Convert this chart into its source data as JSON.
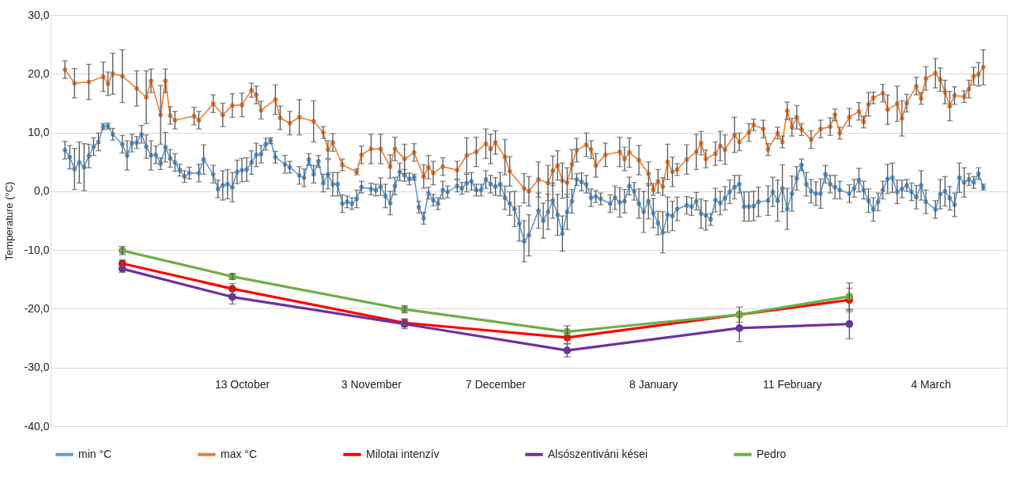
{
  "chart_data": {
    "type": "line",
    "ylabel": "Temperature (°C)",
    "ylim": [
      -40,
      30
    ],
    "yticks": [
      {
        "value": -40,
        "label": "-40,0"
      },
      {
        "value": -30,
        "label": "-30,0"
      },
      {
        "value": -20,
        "label": "-20,0"
      },
      {
        "value": -10,
        "label": "-10,0"
      },
      {
        "value": 0,
        "label": "0,0"
      },
      {
        "value": 10,
        "label": "10,0"
      },
      {
        "value": 20,
        "label": "20,0"
      },
      {
        "value": 30,
        "label": "30,0"
      }
    ],
    "categories": [
      null,
      null,
      null,
      null,
      null,
      null,
      null,
      null,
      null,
      null,
      null,
      null,
      null,
      null,
      null,
      null,
      null,
      null,
      null,
      null,
      null,
      null,
      null,
      null,
      null,
      null,
      null,
      null,
      null,
      null,
      null,
      null,
      null,
      null,
      null,
      null,
      null,
      null,
      null,
      null,
      "13 October",
      null,
      null,
      null,
      null,
      null,
      null,
      null,
      null,
      null,
      null,
      null,
      null,
      null,
      null,
      null,
      null,
      null,
      null,
      null,
      null,
      null,
      null,
      null,
      null,
      null,
      null,
      "3 November",
      null,
      null,
      null,
      null,
      null,
      null,
      null,
      null,
      null,
      null,
      null,
      null,
      null,
      null,
      null,
      null,
      null,
      null,
      null,
      null,
      null,
      null,
      null,
      null,
      null,
      "7 December",
      null,
      null,
      null,
      null,
      null,
      null,
      null,
      null,
      null,
      null,
      null,
      null,
      null,
      null,
      null,
      null,
      null,
      null,
      null,
      null,
      null,
      null,
      null,
      null,
      null,
      null,
      null,
      null,
      null,
      null,
      null,
      null,
      "8 January",
      null,
      null,
      null,
      null,
      null,
      null,
      null,
      null,
      null,
      null,
      null,
      null,
      null,
      null,
      null,
      null,
      null,
      null,
      null,
      null,
      null,
      null,
      null,
      null,
      null,
      null,
      null,
      null,
      "11 February",
      null,
      null,
      null,
      null,
      null,
      null,
      null,
      null,
      null,
      null,
      null,
      null,
      null,
      null,
      null,
      null,
      null,
      null,
      null,
      null,
      null,
      null,
      null,
      null,
      null,
      null,
      null,
      null,
      "4 March",
      null,
      null,
      null,
      null,
      null,
      null,
      null,
      null,
      null,
      null,
      null,
      null,
      null,
      null,
      null,
      null
    ],
    "grid": "y",
    "legend": "bottom",
    "marker": "circle",
    "line_style": "solid",
    "series": [
      {
        "name": "min °C",
        "color": "#5b9bd5",
        "values": [
          null,
          null,
          null,
          7,
          5.8,
          3.8,
          4.9,
          4.1,
          6,
          7.6,
          8.4,
          11,
          11.1,
          9.7,
          null,
          8,
          6.1,
          8.2,
          8.3,
          9.7,
          7.6,
          6.1,
          6.2,
          4.7,
          7.5,
          5.6,
          4.9,
          3.6,
          2.5,
          3.1,
          null,
          3.1,
          5.4,
          null,
          2.9,
          0.4,
          1,
          1.2,
          0.7,
          3.3,
          3.6,
          3.7,
          4.9,
          6.2,
          6.3,
          8,
          8.6,
          5.8,
          null,
          4.6,
          4.1,
          null,
          2.7,
          2.3,
          5.4,
          2.9,
          5.1,
          1.4,
          2.9,
          1.2,
          1.2,
          -2.1,
          -1.8,
          -2.1,
          -1.3,
          0.7,
          null,
          0.4,
          0.2,
          0.8,
          -0.8,
          -2,
          0.9,
          3.3,
          2.7,
          2.1,
          2.4,
          -2.7,
          -4.6,
          -0.3,
          -1.5,
          -2.1,
          0.2,
          -0.1,
          null,
          0.9,
          0.5,
          1.4,
          1.7,
          0.2,
          0.2,
          2,
          1.2,
          0.8,
          1.2,
          -1.1,
          -2.1,
          -3,
          -5.5,
          -8.5,
          -7.5,
          null,
          -3.3,
          -5,
          -3.5,
          -1.6,
          -4,
          -7.2,
          -3.5,
          -1.7,
          2,
          1.6,
          1.2,
          -1.1,
          -0.9,
          -1.3,
          null,
          -2.1,
          -1.1,
          -1.9,
          -1.7,
          0.9,
          0,
          -2.1,
          -3.5,
          -1.7,
          -3.7,
          -5.4,
          -7,
          -4,
          -4.2,
          -3,
          null,
          -2.4,
          -2.6,
          -1.7,
          -3.8,
          -4.1,
          -4.8,
          -1.5,
          -2,
          -1.2,
          -0.1,
          0.7,
          1.2,
          -2.6,
          -2.6,
          -2.5,
          -1.8,
          null,
          -1.6,
          -0.1,
          -1.6,
          0.5,
          -3,
          -0.4,
          2.2,
          4.5,
          1.2,
          0,
          -0.4,
          -0.4,
          2.9,
          1.2,
          0.7,
          0.2,
          null,
          -0.4,
          0.5,
          1.9,
          0.2,
          -1.6,
          -3.1,
          -1.8,
          0.2,
          2.1,
          2.3,
          -0.1,
          0.4,
          1,
          -0.1,
          -1,
          1,
          -1.8,
          null,
          -3.1,
          -0.5,
          0,
          -1.2,
          -2.3,
          2.3,
          1.5,
          2,
          1.5,
          3,
          0.7,
          null,
          null,
          null,
          null,
          null
        ],
        "errors": [
          null,
          null,
          null,
          1.5,
          2,
          3.5,
          3.5,
          4,
          2,
          1.5,
          1.5,
          0.5,
          0.5,
          1,
          null,
          1.5,
          2.5,
          1.5,
          1,
          1.5,
          2,
          2.5,
          1.5,
          1,
          2.5,
          1.5,
          1.5,
          1,
          1,
          1,
          null,
          1.5,
          2.5,
          null,
          1.5,
          1.5,
          2.5,
          2.5,
          2.5,
          2,
          2,
          2,
          2,
          2,
          1.5,
          1,
          0.5,
          1,
          null,
          1.5,
          1,
          null,
          1.5,
          1.5,
          1,
          1.5,
          1,
          1.5,
          2.5,
          2,
          2,
          1.5,
          1,
          1,
          1.5,
          1,
          null,
          1,
          1,
          1.5,
          2,
          2,
          1.5,
          1.5,
          1,
          1,
          0.5,
          1,
          1,
          1,
          1,
          1,
          1.5,
          1,
          null,
          1,
          1,
          1.5,
          1.5,
          1,
          1,
          1.5,
          1.5,
          1.5,
          2,
          2,
          2,
          3,
          3,
          3.5,
          3.5,
          null,
          3,
          3,
          3,
          3,
          3.5,
          3,
          3,
          2,
          1,
          1.5,
          1.5,
          1.5,
          1,
          1,
          null,
          1.5,
          2,
          2.5,
          2,
          1.5,
          1.5,
          2.5,
          3.5,
          3,
          2.5,
          2,
          3.5,
          3,
          2.5,
          2,
          null,
          1.5,
          1.5,
          1.5,
          2.5,
          2.5,
          1,
          2,
          2,
          2,
          2,
          2,
          1.5,
          2.5,
          2.5,
          2.5,
          2.5,
          null,
          2.5,
          2.5,
          3.5,
          4,
          3.5,
          3,
          2,
          1,
          2,
          2,
          2,
          2.5,
          1.5,
          1.5,
          2,
          1.5,
          null,
          1.5,
          1.5,
          2,
          1.5,
          2,
          2,
          1.5,
          1.5,
          2.5,
          2.5,
          2,
          1.5,
          1,
          1.5,
          2,
          2.5,
          2,
          null,
          1.5,
          2.5,
          2.5,
          2,
          2,
          2.5,
          2.5,
          1,
          1,
          1,
          0.5,
          null,
          null,
          null,
          null,
          null
        ]
      },
      {
        "name": "max °C",
        "color": "#ed7d31",
        "values": [
          null,
          null,
          null,
          20.7,
          null,
          18.4,
          null,
          null,
          18.6,
          null,
          null,
          19.5,
          18.3,
          20,
          null,
          19.6,
          null,
          null,
          17.5,
          null,
          16,
          18.8,
          null,
          13,
          18.8,
          12.9,
          12.1,
          null,
          null,
          null,
          12.8,
          12.1,
          null,
          null,
          14.9,
          null,
          13,
          null,
          14.6,
          null,
          14.7,
          null,
          17.2,
          16.4,
          13.8,
          null,
          null,
          15.6,
          12.5,
          null,
          11.6,
          null,
          12.6,
          null,
          null,
          11.9,
          null,
          10,
          7.1,
          8.3,
          null,
          4.5,
          null,
          null,
          3.3,
          6.2,
          null,
          7.2,
          null,
          7.2,
          null,
          4.2,
          7.2,
          null,
          5.5,
          null,
          6.6,
          null,
          2.5,
          4.1,
          3.1,
          null,
          4.2,
          null,
          null,
          3.6,
          null,
          6.1,
          null,
          6.7,
          null,
          8.1,
          7.2,
          8.3,
          null,
          5.8,
          3.4,
          null,
          null,
          0.5,
          0,
          null,
          2,
          null,
          1.4,
          3.5,
          4.4,
          1.8,
          1.5,
          4.6,
          7,
          null,
          7.9,
          7.1,
          4.4,
          null,
          6.2,
          null,
          null,
          6.7,
          5.5,
          6.6,
          null,
          5.3,
          null,
          3,
          0.3,
          1.7,
          0.8,
          5,
          3.3,
          3.7,
          null,
          5.4,
          null,
          6.7,
          8.2,
          5.5,
          null,
          6.4,
          7.7,
          7.1,
          null,
          9.6,
          8.4,
          null,
          10,
          11.3,
          null,
          10.6,
          7.1,
          null,
          9.9,
          8.4,
          13.7,
          10.9,
          12.6,
          10.5,
          null,
          8.8,
          null,
          10.6,
          null,
          11,
          13,
          9.9,
          null,
          12.6,
          null,
          13.6,
          11.8,
          14.8,
          15.9,
          null,
          16.7,
          13.9,
          null,
          14.9,
          12.4,
          15,
          null,
          17.9,
          15.8,
          19.2,
          null,
          20.1,
          19,
          16.9,
          14.5,
          16.3,
          null,
          16.1,
          17.4,
          19.6,
          19.9,
          21.1,
          null,
          null,
          null,
          null,
          null
        ],
        "errors": [
          null,
          null,
          null,
          1.5,
          null,
          2.5,
          null,
          null,
          3,
          null,
          null,
          2.5,
          2,
          3.5,
          null,
          4.5,
          null,
          null,
          3,
          null,
          4.5,
          2,
          null,
          5,
          2,
          1.5,
          1.5,
          null,
          null,
          null,
          1.5,
          1.5,
          null,
          null,
          1.5,
          null,
          2,
          null,
          2,
          null,
          2,
          null,
          1.2,
          1.5,
          1.5,
          null,
          null,
          2.5,
          2,
          null,
          2,
          null,
          3,
          null,
          null,
          3.5,
          null,
          1,
          1.5,
          1.5,
          null,
          1,
          null,
          null,
          0.5,
          1.5,
          null,
          2.5,
          null,
          2.5,
          null,
          2,
          2,
          null,
          2.5,
          null,
          1.5,
          null,
          2,
          2,
          2,
          null,
          1.5,
          null,
          null,
          1.5,
          null,
          3,
          null,
          2.5,
          null,
          2.5,
          2.5,
          2,
          null,
          3,
          2.5,
          null,
          null,
          2.5,
          2.5,
          null,
          3,
          null,
          3,
          2.5,
          2.5,
          3,
          2.5,
          2.5,
          2,
          null,
          2,
          1.5,
          2,
          null,
          2,
          null,
          null,
          2.5,
          2,
          2.5,
          null,
          2.5,
          null,
          2,
          1,
          2,
          1.5,
          3,
          2.5,
          1,
          null,
          2.5,
          null,
          3,
          2,
          1.5,
          null,
          2,
          2.5,
          2.5,
          null,
          3,
          1.5,
          null,
          1.5,
          1,
          null,
          1.5,
          1,
          null,
          1,
          1,
          1.5,
          1.5,
          2,
          1,
          null,
          1.5,
          null,
          1.5,
          null,
          1.5,
          1,
          1,
          null,
          1.5,
          null,
          1.5,
          1,
          2,
          1,
          null,
          1.5,
          2.5,
          null,
          3,
          3,
          1.5,
          null,
          1.5,
          1,
          2,
          null,
          2.5,
          2,
          2,
          2.5,
          1.5,
          null,
          1,
          1.5,
          1.5,
          2,
          3,
          null,
          null,
          null,
          null,
          null
        ]
      },
      {
        "name": "Milotai intenzív",
        "color": "#ff0000",
        "values": [
          null,
          null,
          null,
          null,
          null,
          null,
          null,
          null,
          null,
          null,
          null,
          null,
          null,
          null,
          null,
          -12.3,
          null,
          null,
          null,
          null,
          null,
          null,
          null,
          null,
          null,
          null,
          null,
          null,
          null,
          null,
          null,
          null,
          null,
          null,
          null,
          null,
          null,
          null,
          -16.6,
          null,
          null,
          null,
          null,
          null,
          null,
          null,
          null,
          null,
          null,
          null,
          null,
          null,
          null,
          null,
          null,
          null,
          null,
          null,
          null,
          null,
          null,
          null,
          null,
          null,
          null,
          null,
          null,
          null,
          null,
          null,
          null,
          null,
          null,
          null,
          -22.4,
          null,
          null,
          null,
          null,
          null,
          null,
          null,
          null,
          null,
          null,
          null,
          null,
          null,
          null,
          null,
          null,
          null,
          null,
          null,
          null,
          null,
          null,
          null,
          null,
          null,
          null,
          null,
          null,
          null,
          null,
          null,
          null,
          null,
          -24.9,
          null,
          null,
          null,
          null,
          null,
          null,
          null,
          null,
          null,
          null,
          null,
          null,
          null,
          null,
          null,
          null,
          null,
          null,
          null,
          null,
          null,
          null,
          null,
          null,
          null,
          null,
          null,
          null,
          null,
          null,
          null,
          null,
          null,
          null,
          null,
          -21,
          null,
          null,
          null,
          null,
          null,
          null,
          null,
          null,
          null,
          null,
          null,
          null,
          null,
          null,
          null,
          null,
          null,
          null,
          null,
          null,
          null,
          null,
          -18.5,
          null,
          null,
          null,
          null,
          null,
          null,
          null,
          null,
          null,
          null,
          null,
          null,
          null,
          null,
          null,
          null,
          null,
          null,
          null,
          null,
          null,
          null,
          null,
          null,
          null,
          null,
          null,
          null,
          null,
          null,
          null,
          null,
          null
        ],
        "errors": [
          null,
          null,
          null,
          null,
          null,
          null,
          null,
          null,
          null,
          null,
          null,
          null,
          null,
          null,
          null,
          0.6,
          null,
          null,
          null,
          null,
          null,
          null,
          null,
          null,
          null,
          null,
          null,
          null,
          null,
          null,
          null,
          null,
          null,
          null,
          null,
          null,
          null,
          null,
          0.9,
          null,
          null,
          null,
          null,
          null,
          null,
          null,
          null,
          null,
          null,
          null,
          null,
          null,
          null,
          null,
          null,
          null,
          null,
          null,
          null,
          null,
          null,
          null,
          null,
          null,
          null,
          null,
          null,
          null,
          null,
          null,
          null,
          null,
          null,
          null,
          0.7,
          null,
          null,
          null,
          null,
          null,
          null,
          null,
          null,
          null,
          null,
          null,
          null,
          null,
          null,
          null,
          null,
          null,
          null,
          null,
          null,
          null,
          null,
          null,
          null,
          null,
          null,
          null,
          null,
          null,
          null,
          null,
          null,
          null,
          1,
          null,
          null,
          null,
          null,
          null,
          null,
          null,
          null,
          null,
          null,
          null,
          null,
          null,
          null,
          null,
          null,
          null,
          null,
          null,
          null,
          null,
          null,
          null,
          null,
          null,
          null,
          null,
          null,
          null,
          null,
          null,
          null,
          null,
          null,
          null,
          null,
          null,
          null,
          null,
          null,
          null,
          null,
          null,
          null,
          null,
          null,
          null,
          null,
          null,
          null,
          null,
          null,
          null,
          null,
          null,
          null,
          null,
          null,
          2,
          null,
          null,
          null,
          null,
          null,
          null,
          null,
          null,
          null,
          null,
          null,
          null,
          null,
          null,
          null,
          null,
          null,
          null,
          null,
          null,
          null,
          null,
          null,
          null,
          null,
          null,
          null,
          null,
          null,
          null,
          null,
          null,
          null
        ]
      },
      {
        "name": "Alsószentiváni kései",
        "color": "#7030a0",
        "values": [
          null,
          null,
          null,
          null,
          null,
          null,
          null,
          null,
          null,
          null,
          null,
          null,
          null,
          null,
          null,
          -13.2,
          null,
          null,
          null,
          null,
          null,
          null,
          null,
          null,
          null,
          null,
          null,
          null,
          null,
          null,
          null,
          null,
          null,
          null,
          null,
          null,
          null,
          null,
          -18,
          null,
          null,
          null,
          null,
          null,
          null,
          null,
          null,
          null,
          null,
          null,
          null,
          null,
          null,
          null,
          null,
          null,
          null,
          null,
          null,
          null,
          null,
          null,
          null,
          null,
          null,
          null,
          null,
          null,
          null,
          null,
          null,
          null,
          null,
          null,
          -22.6,
          null,
          null,
          null,
          null,
          null,
          null,
          null,
          null,
          null,
          null,
          null,
          null,
          null,
          null,
          null,
          null,
          null,
          null,
          null,
          null,
          null,
          null,
          null,
          null,
          null,
          null,
          null,
          null,
          null,
          null,
          null,
          null,
          null,
          -27.1,
          null,
          null,
          null,
          null,
          null,
          null,
          null,
          null,
          null,
          null,
          null,
          null,
          null,
          null,
          null,
          null,
          null,
          null,
          null,
          null,
          null,
          null,
          null,
          null,
          null,
          null,
          null,
          null,
          null,
          null,
          null,
          null,
          null,
          null,
          null,
          -23.3,
          null,
          null,
          null,
          null,
          null,
          null,
          null,
          null,
          null,
          null,
          null,
          null,
          null,
          null,
          null,
          null,
          null,
          null,
          null,
          null,
          null,
          null,
          -22.6,
          null,
          null,
          null,
          null,
          null,
          null,
          null,
          null,
          null,
          null,
          null,
          null,
          null,
          null,
          null,
          null,
          null,
          null,
          null,
          null,
          null,
          null,
          null,
          null,
          null,
          null,
          null,
          null,
          null,
          null,
          null,
          null,
          null
        ],
        "errors": [
          null,
          null,
          null,
          null,
          null,
          null,
          null,
          null,
          null,
          null,
          null,
          null,
          null,
          null,
          null,
          0.6,
          null,
          null,
          null,
          null,
          null,
          null,
          null,
          null,
          null,
          null,
          null,
          null,
          null,
          null,
          null,
          null,
          null,
          null,
          null,
          null,
          null,
          null,
          1.2,
          null,
          null,
          null,
          null,
          null,
          null,
          null,
          null,
          null,
          null,
          null,
          null,
          null,
          null,
          null,
          null,
          null,
          null,
          null,
          null,
          null,
          null,
          null,
          null,
          null,
          null,
          null,
          null,
          null,
          null,
          null,
          null,
          null,
          null,
          null,
          0.8,
          null,
          null,
          null,
          null,
          null,
          null,
          null,
          null,
          null,
          null,
          null,
          null,
          null,
          null,
          null,
          null,
          null,
          null,
          null,
          null,
          null,
          null,
          null,
          null,
          null,
          null,
          null,
          null,
          null,
          null,
          null,
          null,
          null,
          1.1,
          null,
          null,
          null,
          null,
          null,
          null,
          null,
          null,
          null,
          null,
          null,
          null,
          null,
          null,
          null,
          null,
          null,
          null,
          null,
          null,
          null,
          null,
          null,
          null,
          null,
          null,
          null,
          null,
          null,
          null,
          null,
          null,
          null,
          null,
          null,
          2.3,
          null,
          null,
          null,
          null,
          null,
          null,
          null,
          null,
          null,
          null,
          null,
          null,
          null,
          null,
          null,
          null,
          null,
          null,
          null,
          null,
          null,
          null,
          2.5,
          null,
          null,
          null,
          null,
          null,
          null,
          null,
          null,
          null,
          null,
          null,
          null,
          null,
          null,
          null,
          null,
          null,
          null,
          null,
          null,
          null,
          null,
          null,
          null,
          null,
          null,
          null,
          null,
          null,
          null,
          null,
          null,
          null
        ]
      },
      {
        "name": "Pedro",
        "color": "#70ad47",
        "values": [
          null,
          null,
          null,
          null,
          null,
          null,
          null,
          null,
          null,
          null,
          null,
          null,
          null,
          null,
          null,
          -10.1,
          null,
          null,
          null,
          null,
          null,
          null,
          null,
          null,
          null,
          null,
          null,
          null,
          null,
          null,
          null,
          null,
          null,
          null,
          null,
          null,
          null,
          null,
          -14.5,
          null,
          null,
          null,
          null,
          null,
          null,
          null,
          null,
          null,
          null,
          null,
          null,
          null,
          null,
          null,
          null,
          null,
          null,
          null,
          null,
          null,
          null,
          null,
          null,
          null,
          null,
          null,
          null,
          null,
          null,
          null,
          null,
          null,
          null,
          null,
          -20.1,
          null,
          null,
          null,
          null,
          null,
          null,
          null,
          null,
          null,
          null,
          null,
          null,
          null,
          null,
          null,
          null,
          null,
          null,
          null,
          null,
          null,
          null,
          null,
          null,
          null,
          null,
          null,
          null,
          null,
          null,
          null,
          null,
          null,
          -23.9,
          null,
          null,
          null,
          null,
          null,
          null,
          null,
          null,
          null,
          null,
          null,
          null,
          null,
          null,
          null,
          null,
          null,
          null,
          null,
          null,
          null,
          null,
          null,
          null,
          null,
          null,
          null,
          null,
          null,
          null,
          null,
          null,
          null,
          null,
          null,
          -21,
          null,
          null,
          null,
          null,
          null,
          null,
          null,
          null,
          null,
          null,
          null,
          null,
          null,
          null,
          null,
          null,
          null,
          null,
          null,
          null,
          null,
          null,
          -17.9,
          null,
          null,
          null,
          null,
          null,
          null,
          null,
          null,
          null,
          null,
          null,
          null,
          null,
          null,
          null,
          null,
          null,
          null,
          null,
          null,
          null,
          null,
          null,
          null,
          null,
          null,
          null,
          null,
          null,
          null,
          null,
          null,
          null
        ],
        "errors": [
          null,
          null,
          null,
          null,
          null,
          null,
          null,
          null,
          null,
          null,
          null,
          null,
          null,
          null,
          null,
          0.7,
          null,
          null,
          null,
          null,
          null,
          null,
          null,
          null,
          null,
          null,
          null,
          null,
          null,
          null,
          null,
          null,
          null,
          null,
          null,
          null,
          null,
          null,
          0.5,
          null,
          null,
          null,
          null,
          null,
          null,
          null,
          null,
          null,
          null,
          null,
          null,
          null,
          null,
          null,
          null,
          null,
          null,
          null,
          null,
          null,
          null,
          null,
          null,
          null,
          null,
          null,
          null,
          null,
          null,
          null,
          null,
          null,
          null,
          null,
          0.6,
          null,
          null,
          null,
          null,
          null,
          null,
          null,
          null,
          null,
          null,
          null,
          null,
          null,
          null,
          null,
          null,
          null,
          null,
          null,
          null,
          null,
          null,
          null,
          null,
          null,
          null,
          null,
          null,
          null,
          null,
          null,
          null,
          null,
          1,
          null,
          null,
          null,
          null,
          null,
          null,
          null,
          null,
          null,
          null,
          null,
          null,
          null,
          null,
          null,
          null,
          null,
          null,
          null,
          null,
          null,
          null,
          null,
          null,
          null,
          null,
          null,
          null,
          null,
          null,
          null,
          null,
          null,
          null,
          null,
          1.3,
          null,
          null,
          null,
          null,
          null,
          null,
          null,
          null,
          null,
          null,
          null,
          null,
          null,
          null,
          null,
          null,
          null,
          null,
          null,
          null,
          null,
          null,
          2.3,
          null,
          null,
          null,
          null,
          null,
          null,
          null,
          null,
          null,
          null,
          null,
          null,
          null,
          null,
          null,
          null,
          null,
          null,
          null,
          null,
          null,
          null,
          null,
          null,
          null,
          null,
          null,
          null,
          null,
          null,
          null,
          null,
          null
        ]
      }
    ]
  }
}
